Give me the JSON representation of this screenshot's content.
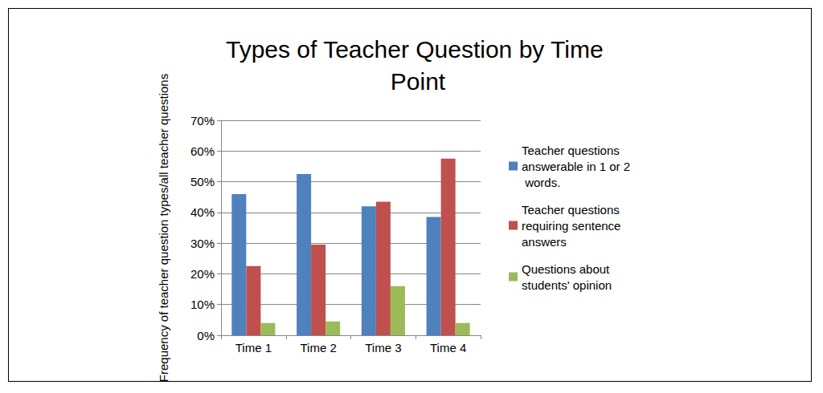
{
  "chart_data": {
    "type": "bar",
    "title": "Types of Teacher Question by Time Point",
    "y_label": "Frequency of teacher question types/all teacher questions",
    "categories": [
      "Time 1",
      "Time 2",
      "Time 3",
      "Time 4"
    ],
    "series": [
      {
        "name": "Teacher questions answerable in 1 or 2 words.",
        "color": "#4f81bd",
        "values": [
          46,
          52.5,
          42,
          38.5
        ]
      },
      {
        "name": "Teacher questions requiring sentence answers",
        "color": "#c0504d",
        "values": [
          22.5,
          29.5,
          43.5,
          57.5
        ]
      },
      {
        "name": "Questions about students' opinion",
        "color": "#9bbb59",
        "values": [
          4,
          4.5,
          16,
          4
        ]
      }
    ],
    "ylim": [
      0,
      70
    ],
    "yticks": [
      {
        "value": 0,
        "label": "0%"
      },
      {
        "value": 10,
        "label": "10%"
      },
      {
        "value": 20,
        "label": "20%"
      },
      {
        "value": 30,
        "label": "30%"
      },
      {
        "value": 40,
        "label": "40%"
      },
      {
        "value": 50,
        "label": "50%"
      },
      {
        "value": 60,
        "label": "60%"
      },
      {
        "value": 70,
        "label": "70%"
      }
    ],
    "grid": true,
    "legend": "right"
  }
}
